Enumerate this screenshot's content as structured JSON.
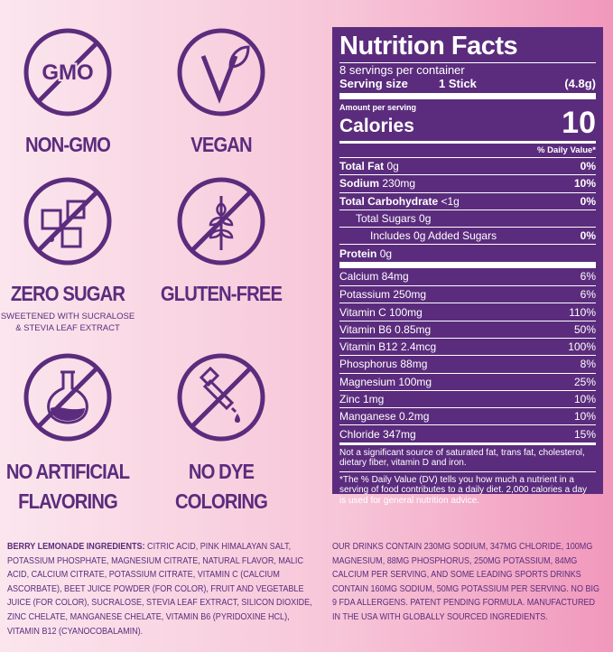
{
  "badges": [
    {
      "icon_text": "GMO",
      "label_lines": [
        "NON-GMO"
      ]
    },
    {
      "label_lines": [
        "VEGAN"
      ]
    },
    {
      "label_lines": [
        "ZERO SUGAR"
      ],
      "note_lines": [
        "SWEETENED WITH SUCRALOSE",
        "& STEVIA LEAF EXTRACT"
      ]
    },
    {
      "label_lines": [
        "GLUTEN-FREE"
      ]
    },
    {
      "label_lines": [
        "NO ARTIFICIAL",
        "FLAVORING"
      ]
    },
    {
      "label_lines": [
        "NO DYE",
        "COLORING"
      ]
    }
  ],
  "nutrition": {
    "title": "Nutrition Facts",
    "servings": "8 servings per container",
    "serving_size_label": "Serving size",
    "serving_size": "1 Stick",
    "serving_weight": "(4.8g)",
    "amount_per_serving": "Amount per serving",
    "calories_label": "Calories",
    "calories": "10",
    "dv_header": "% Daily Value*",
    "macros": [
      {
        "name": "Total Fat",
        "amount": "0g",
        "dv": "0%"
      },
      {
        "name": "Sodium",
        "amount": "230mg",
        "dv": "10%"
      },
      {
        "name": "Total Carbohydrate",
        "amount": "<1g",
        "dv": "0%"
      },
      {
        "name": "Total Sugars",
        "amount": "0g"
      },
      {
        "name": "Includes 0g Added Sugars",
        "dv": "0%"
      },
      {
        "name": "Protein",
        "amount": "0g"
      }
    ],
    "micros": [
      {
        "name": "Calcium 84mg",
        "dv": "6%"
      },
      {
        "name": "Potassium 250mg",
        "dv": "6%"
      },
      {
        "name": "Vitamin C 100mg",
        "dv": "110%"
      },
      {
        "name": "Vitamin B6 0.85mg",
        "dv": "50%"
      },
      {
        "name": "Vitamin B12 2.4mcg",
        "dv": "100%"
      },
      {
        "name": "Phosphorus 88mg",
        "dv": "8%"
      },
      {
        "name": "Magnesium 100mg",
        "dv": "25%"
      },
      {
        "name": "Zinc 1mg",
        "dv": "10%"
      },
      {
        "name": "Manganese 0.2mg",
        "dv": "10%"
      },
      {
        "name": "Chloride 347mg",
        "dv": "15%"
      }
    ],
    "footnotes": [
      "Not a significant source of saturated fat, trans fat, cholesterol, dietary fiber, vitamin D and iron.",
      "*The % Daily Value (DV) tells you how much a nutrient in a serving of food contributes to a daily diet. 2,000 calories a day is used for general nutrition advice."
    ]
  },
  "ingredients": {
    "label": "BERRY LEMONADE INGREDIENTS:",
    "text": "CITRIC ACID, PINK HIMALAYAN SALT, POTASSIUM PHOSPHATE, MAGNESIUM CITRATE, NATURAL FLAVOR, MALIC ACID, CALCIUM CITRATE, POTASSIUM CITRATE, VITAMIN C (CALCIUM ASCORBATE), BEET JUICE POWDER (FOR COLOR), FRUIT AND VEGETABLE JUICE (FOR COLOR), SUCRALOSE, STEVIA LEAF EXTRACT, SILICON DIOXIDE, ZINC CHELATE, MANGANESE CHELATE, VITAMIN B6 (PYRIDOXINE HCL), VITAMIN B12 (CYANOCOBALAMIN)."
  },
  "statement": "OUR DRINKS CONTAIN 230MG SODIUM, 347MG CHLORIDE, 100MG MAGNESIUM, 88MG PHOSPHORUS, 250MG POTASSIUM, 84MG CALCIUM PER SERVING, AND SOME LEADING SPORTS DRINKS CONTAIN 160MG SODIUM, 50MG POTASSIUM PER SERVING. NO BIG 9 FDA ALLERGENS. PATENT PENDING FORMULA. MANUFACTURED IN THE USA WITH GLOBALLY SOURCED INGREDIENTS."
}
